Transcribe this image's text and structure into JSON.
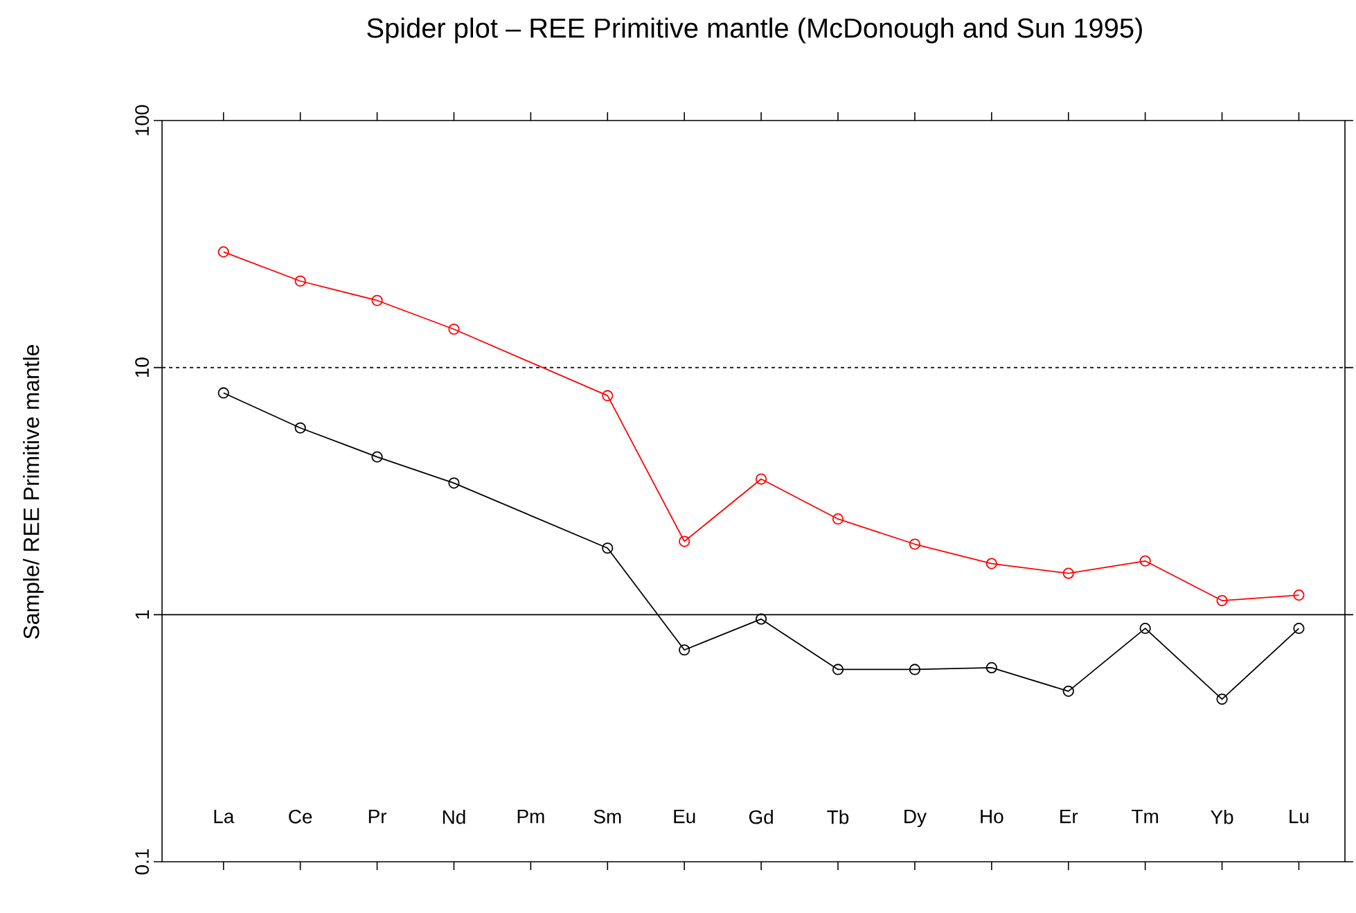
{
  "chart_data": {
    "type": "line",
    "title": "Spider plot – REE Primitive mantle (McDonough  and  Sun 1995)",
    "ylabel": "Sample/ REE Primitive mantle",
    "categories": [
      "La",
      "Ce",
      "Pr",
      "Nd",
      "Pm",
      "Sm",
      "Eu",
      "Gd",
      "Tb",
      "Dy",
      "Ho",
      "Er",
      "Tm",
      "Yb",
      "Lu"
    ],
    "series": [
      {
        "color": "#ff0000",
        "values": [
          29.4,
          22.4,
          18.7,
          14.3,
          null,
          7.7,
          1.98,
          3.54,
          2.44,
          1.93,
          1.61,
          1.47,
          1.65,
          1.14,
          1.2
        ]
      },
      {
        "color": "#000000",
        "values": [
          7.9,
          5.7,
          4.35,
          3.41,
          null,
          1.86,
          0.72,
          0.96,
          0.6,
          0.6,
          0.61,
          0.49,
          0.88,
          0.455,
          0.88
        ]
      }
    ],
    "ylim": [
      0.1,
      100
    ],
    "yticks": [
      0.1,
      1,
      10,
      100
    ],
    "log": "y",
    "marker": "circle",
    "ref_lines": [
      {
        "axis": "y",
        "value": 10,
        "line_style": "dotted"
      },
      {
        "axis": "y",
        "value": 1,
        "line_style": "solid"
      }
    ]
  }
}
